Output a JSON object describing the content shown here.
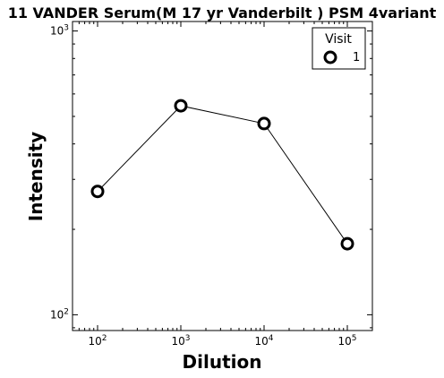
{
  "chart_data": {
    "type": "line",
    "title": "11 VANDER Serum(M 17 yr Vanderbilt ) PSM 4variant",
    "xlabel": "Dilution",
    "ylabel": "Intensity",
    "xscale": "log",
    "yscale": "log",
    "xlim": [
      50,
      200000
    ],
    "ylim": [
      88,
      1080
    ],
    "x": [
      100,
      1000,
      10000,
      100000
    ],
    "x_ticks": [
      {
        "value": 100,
        "mantissa": "10",
        "exp": "2"
      },
      {
        "value": 1000,
        "mantissa": "10",
        "exp": "3"
      },
      {
        "value": 10000,
        "mantissa": "10",
        "exp": "4"
      },
      {
        "value": 100000,
        "mantissa": "10",
        "exp": "5"
      }
    ],
    "y_ticks": [
      {
        "value": 100,
        "mantissa": "10",
        "exp": "2"
      },
      {
        "value": 1000,
        "mantissa": "10",
        "exp": "3"
      }
    ],
    "series": [
      {
        "name": "1",
        "values": [
          272,
          545,
          472,
          178
        ],
        "color": "#000000",
        "marker": "open-circle"
      }
    ],
    "legend": {
      "title": "Visit",
      "position": "top-right"
    },
    "grid": false
  }
}
